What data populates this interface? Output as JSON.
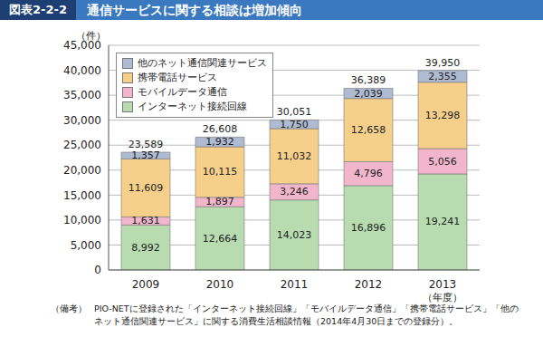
{
  "header": {
    "figure": "図表2-2-2",
    "title": "通信サービスに関する相談は増加傾向"
  },
  "chart_data": {
    "type": "bar",
    "stacked": true,
    "grid": true,
    "legend": "upper left",
    "data_labels": true,
    "y_unit": "（件）",
    "x_label": "（年度）",
    "categories": [
      "2009",
      "2010",
      "2011",
      "2012",
      "2013"
    ],
    "series": [
      {
        "name": "インターネット接続回線",
        "color": "#b8dcb0",
        "values": [
          8992,
          12664,
          14023,
          16896,
          19241
        ],
        "value_labels": [
          "8,992",
          "12,664",
          "14,023",
          "16,896",
          "19,241"
        ]
      },
      {
        "name": "モバイルデータ通信",
        "color": "#f2b6cc",
        "values": [
          1631,
          1897,
          3246,
          4796,
          5056
        ],
        "value_labels": [
          "1,631",
          "1,897",
          "3,246",
          "4,796",
          "5,056"
        ]
      },
      {
        "name": "携帯電話サービス",
        "color": "#f6cf8a",
        "values": [
          11609,
          10115,
          11032,
          12658,
          13298
        ],
        "value_labels": [
          "11,609",
          "10,115",
          "11,032",
          "12,658",
          "13,298"
        ]
      },
      {
        "name": "他のネット通信関連サービス",
        "color": "#aebbd3",
        "values": [
          1357,
          1932,
          1750,
          2039,
          2355
        ],
        "value_labels": [
          "1,357",
          "1,932",
          "1,750",
          "2,039",
          "2,355"
        ]
      }
    ],
    "totals": [
      23589,
      26608,
      30051,
      36389,
      39950
    ],
    "total_labels": [
      "23,589",
      "26,608",
      "30,051",
      "36,389",
      "39,950"
    ],
    "ylim": [
      0,
      45000
    ],
    "yticks": [
      0,
      {
        "value": 5000,
        "label": "5,000"
      },
      {
        "value": 10000,
        "label": "10,000"
      },
      {
        "value": 15000,
        "label": "15,000"
      },
      {
        "value": 20000,
        "label": "20,000"
      },
      {
        "value": 25000,
        "label": "25,000"
      },
      {
        "value": 30000,
        "label": "30,000"
      },
      {
        "value": 35000,
        "label": "35,000"
      },
      {
        "value": 40000,
        "label": "40,000"
      },
      {
        "value": 45000,
        "label": "45,000"
      }
    ]
  },
  "note": {
    "label": "（備考）",
    "text": "PIO-NETに登録された「インターネット接続回線」「モバイルデータ通信」「携帯電話サービス」「他のネット通信関連サービス」に関する消費生活相談情報（2014年4月30日までの登録分）。"
  }
}
